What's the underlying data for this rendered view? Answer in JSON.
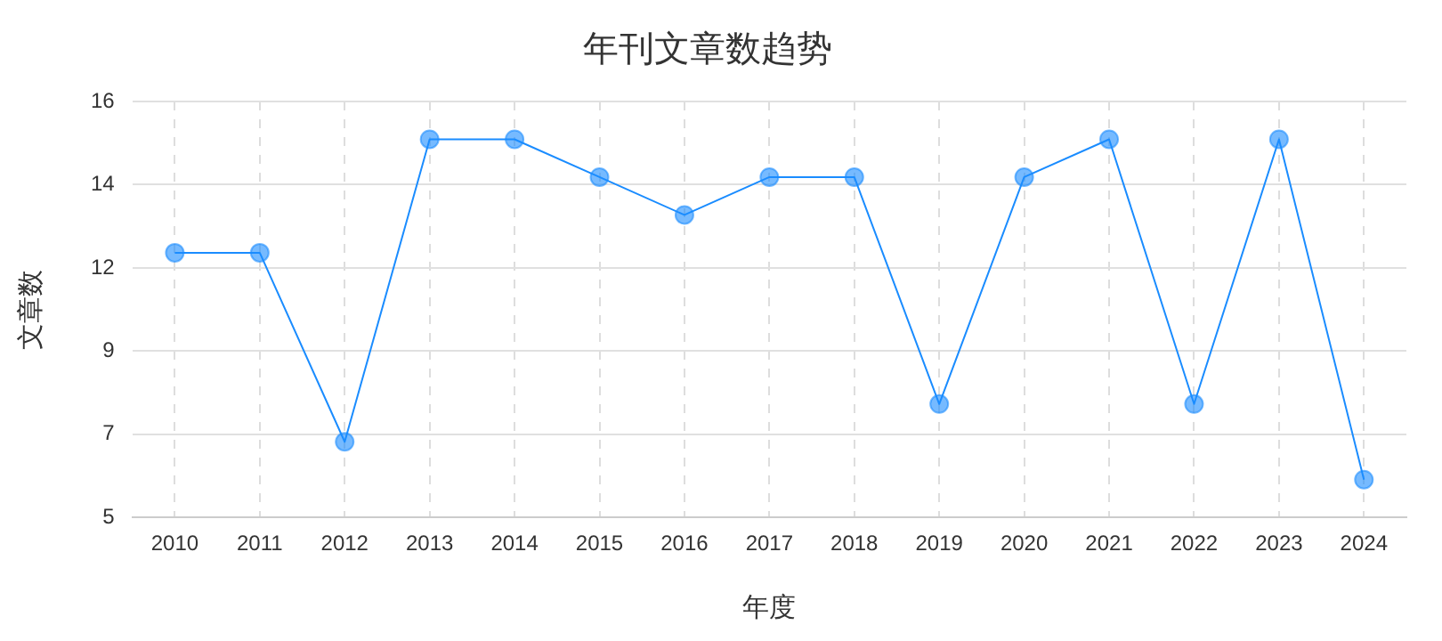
{
  "chart_data": {
    "type": "line",
    "title": "年刊文章数趋势",
    "xlabel": "年度",
    "ylabel": "文章数",
    "categories": [
      "2010",
      "2011",
      "2012",
      "2013",
      "2014",
      "2015",
      "2016",
      "2017",
      "2018",
      "2019",
      "2020",
      "2021",
      "2022",
      "2023",
      "2024"
    ],
    "series": [
      {
        "color": "#1a8cff",
        "values": [
          12,
          12,
          7,
          15,
          15,
          14,
          13,
          14,
          14,
          8,
          14,
          15,
          8,
          15,
          6
        ]
      }
    ],
    "ylim": [
      5,
      16
    ],
    "yticks": [
      5,
      {
        "value": 7.2,
        "label": "7"
      },
      {
        "value": 9.4,
        "label": "9"
      },
      {
        "value": 11.6,
        "label": "12"
      },
      {
        "value": 13.8,
        "label": "14"
      },
      16
    ],
    "grid": true,
    "legend": false,
    "marker": "circle",
    "line_style": "solid"
  }
}
